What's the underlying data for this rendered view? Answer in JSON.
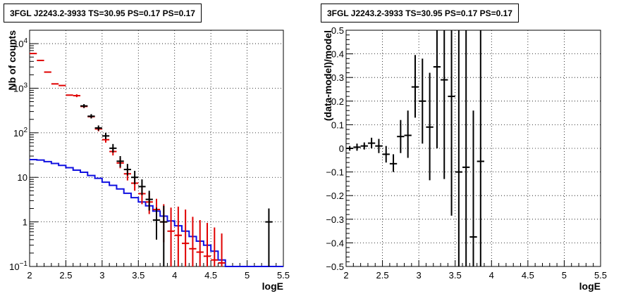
{
  "panels": [
    {
      "title": "3FGL J2243.2-3933 TS=30.95 PS=0.17 PS=0.17"
    },
    {
      "title": "3FGL J2243.2-3933 TS=30.95 PS=0.17 PS=0.17"
    }
  ],
  "chart_data": [
    {
      "type": "line",
      "title": "3FGL J2243.2-3933 TS=30.95 PS=0.17 PS=0.17",
      "xlabel": "logE",
      "ylabel": "Nb of counts",
      "xlim": [
        2,
        5.5
      ],
      "ylim": [
        0.1,
        20000
      ],
      "yscale": "log",
      "grid": true,
      "x_ticks": [
        "2",
        "2.5",
        "3",
        "3.5",
        "4",
        "4.5",
        "5",
        "5.5"
      ],
      "y_ticks": [
        "10^-1",
        "1",
        "10",
        "10^2",
        "10^3",
        "10^4"
      ],
      "x_bin_edges": [
        2.0,
        2.1,
        2.2,
        2.3,
        2.4,
        2.5,
        2.6,
        2.7,
        2.8,
        2.9,
        3.0,
        3.1,
        3.2,
        3.3,
        3.4,
        3.5,
        3.6,
        3.7,
        3.8,
        3.9,
        4.0,
        4.1,
        4.2,
        4.3,
        4.4,
        4.5,
        4.6,
        4.7,
        4.8,
        4.9,
        5.0,
        5.1,
        5.2,
        5.3,
        5.4,
        5.5
      ],
      "series": [
        {
          "name": "",
          "kind": "data-points",
          "color": "#000000",
          "points": [
            {
              "x": 2.75,
              "y": 400,
              "lo": 360,
              "hi": 440
            },
            {
              "x": 2.85,
              "y": 235,
              "lo": 210,
              "hi": 262
            },
            {
              "x": 2.95,
              "y": 128,
              "lo": 112,
              "hi": 146
            },
            {
              "x": 3.05,
              "y": 85,
              "lo": 72,
              "hi": 100
            },
            {
              "x": 3.15,
              "y": 45,
              "lo": 36,
              "hi": 56
            },
            {
              "x": 3.25,
              "y": 23,
              "lo": 17,
              "hi": 30
            },
            {
              "x": 3.35,
              "y": 15,
              "lo": 11,
              "hi": 20
            },
            {
              "x": 3.45,
              "y": 10,
              "lo": 7,
              "hi": 14
            },
            {
              "x": 3.55,
              "y": 6.2,
              "lo": 4,
              "hi": 9
            },
            {
              "x": 3.65,
              "y": 3.2,
              "lo": 1.8,
              "hi": 5
            },
            {
              "x": 3.75,
              "y": 1.1,
              "lo": 0.4,
              "hi": 2.1
            },
            {
              "x": 3.85,
              "y": 1.0,
              "lo": 0.1,
              "hi": 2.3
            },
            {
              "x": 5.3,
              "y": 1.0,
              "lo": 0.1,
              "hi": 2.0
            }
          ]
        },
        {
          "name": "",
          "kind": "model-points",
          "color": "#e00000",
          "points": [
            {
              "x": 2.05,
              "y": 6000,
              "lo": 5900,
              "hi": 6100
            },
            {
              "x": 2.15,
              "y": 4200,
              "lo": 4100,
              "hi": 4300
            },
            {
              "x": 2.25,
              "y": 2300,
              "lo": 2250,
              "hi": 2350
            },
            {
              "x": 2.35,
              "y": 1250,
              "lo": 1230,
              "hi": 1270
            },
            {
              "x": 2.45,
              "y": 1150,
              "lo": 1130,
              "hi": 1170
            },
            {
              "x": 2.55,
              "y": 700,
              "lo": 690,
              "hi": 710
            },
            {
              "x": 2.65,
              "y": 680,
              "lo": 630,
              "hi": 730
            },
            {
              "x": 2.75,
              "y": 390,
              "lo": 360,
              "hi": 420
            },
            {
              "x": 2.85,
              "y": 230,
              "lo": 210,
              "hi": 250
            },
            {
              "x": 2.95,
              "y": 122,
              "lo": 108,
              "hi": 137
            },
            {
              "x": 3.05,
              "y": 70,
              "lo": 60,
              "hi": 82
            },
            {
              "x": 3.15,
              "y": 38,
              "lo": 31,
              "hi": 46
            },
            {
              "x": 3.25,
              "y": 21,
              "lo": 16,
              "hi": 27
            },
            {
              "x": 3.35,
              "y": 12,
              "lo": 8.5,
              "hi": 16
            },
            {
              "x": 3.45,
              "y": 7.4,
              "lo": 5,
              "hi": 10.5
            },
            {
              "x": 3.55,
              "y": 4.3,
              "lo": 2.5,
              "hi": 6.5
            },
            {
              "x": 3.65,
              "y": 2.8,
              "lo": 1.5,
              "hi": 4.5
            },
            {
              "x": 3.75,
              "y": 1.9,
              "lo": 0.9,
              "hi": 3.3
            },
            {
              "x": 3.85,
              "y": 1.0,
              "lo": 0.35,
              "hi": 2.5
            },
            {
              "x": 3.95,
              "y": 0.62,
              "lo": 0.1,
              "hi": 2.1
            },
            {
              "x": 4.05,
              "y": 0.5,
              "lo": 0.1,
              "hi": 2.2
            },
            {
              "x": 4.15,
              "y": 0.33,
              "lo": 0.1,
              "hi": 1.9
            },
            {
              "x": 4.25,
              "y": 0.25,
              "lo": 0.1,
              "hi": 1.3
            },
            {
              "x": 4.35,
              "y": 0.21,
              "lo": 0.1,
              "hi": 1.1
            },
            {
              "x": 4.45,
              "y": 0.17,
              "lo": 0.1,
              "hi": 0.95
            },
            {
              "x": 4.55,
              "y": 0.14,
              "lo": 0.1,
              "hi": 0.75
            },
            {
              "x": 4.65,
              "y": 0.12,
              "lo": 0.1,
              "hi": 0.55
            }
          ]
        },
        {
          "name": "",
          "kind": "histogram",
          "color": "#1010e0",
          "values": [
            25,
            24.5,
            22.5,
            20.5,
            18.5,
            16.5,
            14.5,
            13,
            11,
            9.5,
            7.8,
            6.6,
            5.5,
            4.4,
            3.5,
            2.8,
            2.3,
            1.75,
            1.35,
            1.05,
            0.82,
            0.62,
            0.47,
            0.37,
            0.3,
            0.22,
            0.14,
            0.1,
            0.1,
            0.1,
            0.1,
            0.1,
            0.1,
            0.1,
            0.1
          ]
        }
      ]
    },
    {
      "type": "scatter",
      "title": "3FGL J2243.2-3933 TS=30.95 PS=0.17 PS=0.17",
      "xlabel": "logE",
      "ylabel": "(data-model)/model",
      "xlim": [
        2,
        5.5
      ],
      "ylim": [
        -0.5,
        0.5
      ],
      "yscale": "linear",
      "grid": true,
      "x_ticks": [
        "2",
        "2.5",
        "3",
        "3.5",
        "4",
        "4.5",
        "5",
        "5.5"
      ],
      "y_ticks": [
        "−0.5",
        "−0.4",
        "−0.3",
        "−0.2",
        "−0.1",
        "0",
        "0.1",
        "0.2",
        "0.3",
        "0.4",
        "0.5"
      ],
      "series": [
        {
          "name": "",
          "color": "#000000",
          "points": [
            {
              "x": 2.05,
              "y": 0.0,
              "lo": -0.01,
              "hi": 0.01
            },
            {
              "x": 2.15,
              "y": 0.005,
              "lo": -0.01,
              "hi": 0.02
            },
            {
              "x": 2.25,
              "y": 0.01,
              "lo": -0.005,
              "hi": 0.025
            },
            {
              "x": 2.35,
              "y": 0.022,
              "lo": 0.0,
              "hi": 0.045
            },
            {
              "x": 2.45,
              "y": 0.01,
              "lo": -0.02,
              "hi": 0.04
            },
            {
              "x": 2.55,
              "y": -0.025,
              "lo": -0.06,
              "hi": 0.01
            },
            {
              "x": 2.65,
              "y": -0.065,
              "lo": -0.1,
              "hi": -0.025
            },
            {
              "x": 2.75,
              "y": 0.05,
              "lo": -0.02,
              "hi": 0.12
            },
            {
              "x": 2.85,
              "y": 0.055,
              "lo": -0.04,
              "hi": 0.16
            },
            {
              "x": 2.95,
              "y": 0.26,
              "lo": 0.13,
              "hi": 0.395
            },
            {
              "x": 3.05,
              "y": 0.2,
              "lo": 0.02,
              "hi": 0.38
            },
            {
              "x": 3.15,
              "y": 0.09,
              "lo": -0.135,
              "hi": 0.32
            },
            {
              "x": 3.25,
              "y": 0.345,
              "lo": 0.0,
              "hi": 0.5
            },
            {
              "x": 3.35,
              "y": 0.29,
              "lo": -0.13,
              "hi": 0.5
            },
            {
              "x": 3.45,
              "y": 0.22,
              "lo": -0.285,
              "hi": 0.5
            },
            {
              "x": 3.55,
              "y": -0.1,
              "lo": -0.5,
              "hi": 0.5
            },
            {
              "x": 3.65,
              "y": -0.08,
              "lo": -0.5,
              "hi": 0.5
            },
            {
              "x": 3.75,
              "y": -0.375,
              "lo": -0.5,
              "hi": 0.16
            },
            {
              "x": 3.85,
              "y": -0.055,
              "lo": -0.5,
              "hi": 0.5
            }
          ]
        }
      ]
    }
  ]
}
